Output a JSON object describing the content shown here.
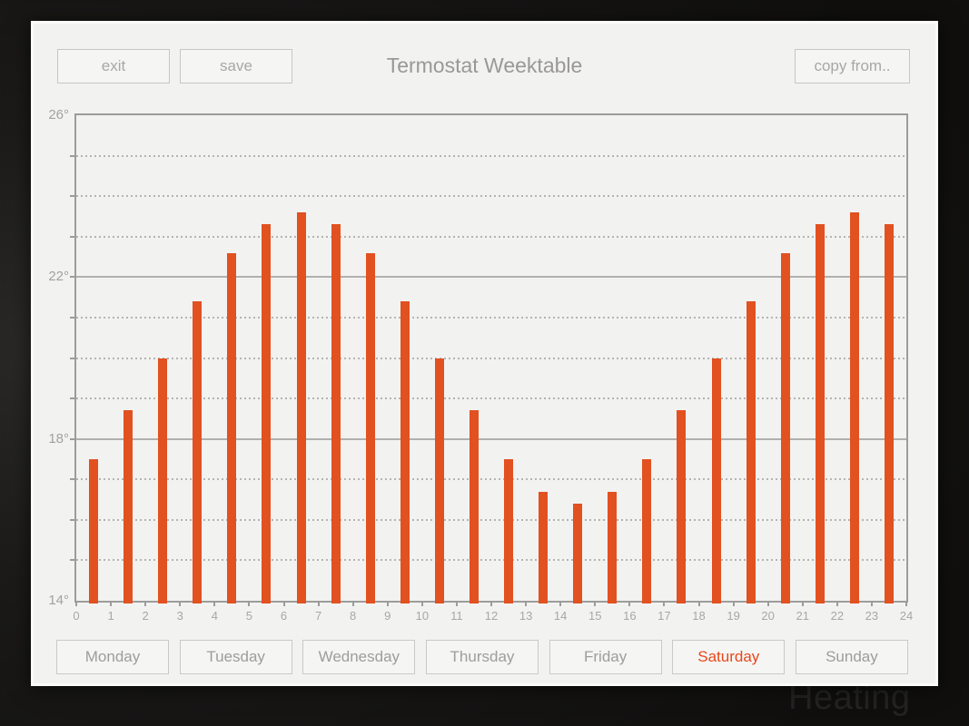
{
  "window": {
    "title": "Termostat Weektable"
  },
  "toolbar": {
    "exit_label": "exit",
    "save_label": "save",
    "copy_label": "copy from.."
  },
  "watermark": "Heating",
  "colors": {
    "bar": "#e25120",
    "accent": "#e8481b"
  },
  "days": {
    "items": [
      {
        "label": "Monday",
        "selected": false
      },
      {
        "label": "Tuesday",
        "selected": false
      },
      {
        "label": "Wednesday",
        "selected": false
      },
      {
        "label": "Thursday",
        "selected": false
      },
      {
        "label": "Friday",
        "selected": false
      },
      {
        "label": "Saturday",
        "selected": true
      },
      {
        "label": "Sunday",
        "selected": false
      }
    ]
  },
  "chart_data": {
    "type": "bar",
    "title": "Termostat Weektable",
    "xlabel": "",
    "ylabel": "",
    "x": [
      0,
      1,
      2,
      3,
      4,
      5,
      6,
      7,
      8,
      9,
      10,
      11,
      12,
      13,
      14,
      15,
      16,
      17,
      18,
      19,
      20,
      21,
      22,
      23
    ],
    "values": [
      17.5,
      18.7,
      20.0,
      21.4,
      22.6,
      23.3,
      23.6,
      23.3,
      22.6,
      21.4,
      20.0,
      18.7,
      17.5,
      16.7,
      16.4,
      16.7,
      17.5,
      18.7,
      20.0,
      21.4,
      22.6,
      23.3,
      23.6,
      23.3
    ],
    "xlim": [
      0,
      24
    ],
    "ylim": [
      14,
      26
    ],
    "x_tick_labels": [
      "0",
      "1",
      "2",
      "3",
      "4",
      "5",
      "6",
      "7",
      "8",
      "9",
      "10",
      "11",
      "12",
      "13",
      "14",
      "15",
      "16",
      "17",
      "18",
      "19",
      "20",
      "21",
      "22",
      "23",
      "24"
    ],
    "y_tick_values": [
      14,
      18,
      22,
      26
    ],
    "y_tick_labels": [
      "14°",
      "18°",
      "22°",
      "26°"
    ],
    "solid_gridlines": [
      18,
      22
    ],
    "dotted_gridlines": [
      15,
      16,
      17,
      19,
      20,
      21,
      23,
      24,
      25
    ],
    "legend": null,
    "grid": true
  }
}
